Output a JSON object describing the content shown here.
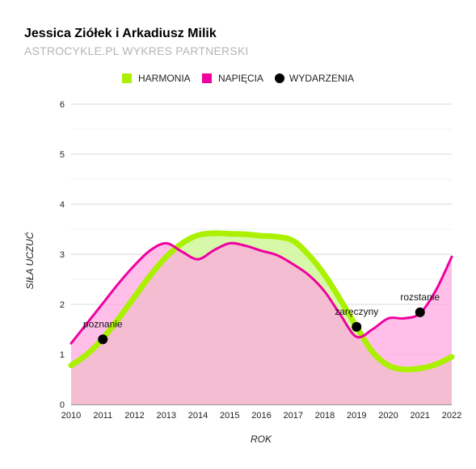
{
  "chart_data": {
    "type": "line",
    "title": "Jessica Ziółek i Arkadiusz Milik",
    "subtitle": "ASTROCYKLE.PL WYKRES PARTNERSKI",
    "xlabel": "ROK",
    "ylabel": "SIŁA UCZUĆ",
    "xlim": [
      2010,
      2022
    ],
    "ylim": [
      0,
      6
    ],
    "x_ticks": [
      "2010",
      "2011",
      "2012",
      "2013",
      "2014",
      "2015",
      "2016",
      "2017",
      "2018",
      "2019",
      "2020",
      "2021",
      "2022"
    ],
    "y_ticks": [
      "0",
      "1",
      "2",
      "3",
      "4",
      "5",
      "6"
    ],
    "grid": true,
    "legend_position": "top",
    "series": [
      {
        "name": "HARMONIA",
        "color": "#aaf000",
        "fill": "#c9f58c",
        "x": [
          2010,
          2010.5,
          2011,
          2011.5,
          2012,
          2012.5,
          2013,
          2013.5,
          2014,
          2014.5,
          2015,
          2015.5,
          2016,
          2016.5,
          2017,
          2017.5,
          2018,
          2018.5,
          2019,
          2019.5,
          2020,
          2020.5,
          2021,
          2021.5,
          2022
        ],
        "y": [
          0.78,
          1.0,
          1.32,
          1.72,
          2.15,
          2.58,
          2.95,
          3.22,
          3.38,
          3.42,
          3.41,
          3.4,
          3.37,
          3.35,
          3.27,
          2.98,
          2.58,
          2.08,
          1.55,
          1.05,
          0.78,
          0.7,
          0.72,
          0.8,
          0.95
        ]
      },
      {
        "name": "NAPIĘCIA",
        "color": "#f000a0",
        "fill": "#ffaae0",
        "x": [
          2010,
          2010.5,
          2011,
          2011.5,
          2012,
          2012.5,
          2013,
          2013.5,
          2014,
          2014.5,
          2015,
          2015.5,
          2016,
          2016.5,
          2017,
          2017.5,
          2018,
          2018.5,
          2019,
          2019.5,
          2020,
          2020.5,
          2021,
          2021.5,
          2022
        ],
        "y": [
          1.22,
          1.62,
          2.02,
          2.42,
          2.78,
          3.08,
          3.22,
          3.05,
          2.9,
          3.08,
          3.22,
          3.17,
          3.07,
          2.98,
          2.8,
          2.58,
          2.25,
          1.78,
          1.35,
          1.5,
          1.72,
          1.72,
          1.82,
          2.28,
          2.95
        ]
      },
      {
        "name": "WYDARZENIA",
        "type": "scatter",
        "color": "#000000",
        "points": [
          {
            "x": 2011,
            "y": 1.3,
            "label": "poznanie"
          },
          {
            "x": 2019,
            "y": 1.55,
            "label": "zaręczyny"
          },
          {
            "x": 2021,
            "y": 1.84,
            "label": "rozstanie"
          }
        ]
      }
    ]
  }
}
